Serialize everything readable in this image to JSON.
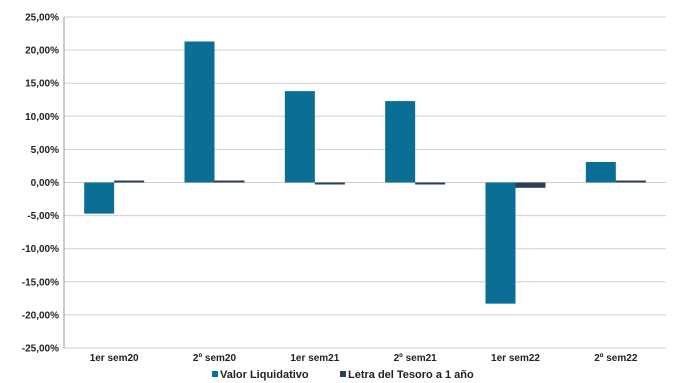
{
  "chart_data": {
    "type": "bar",
    "categories": [
      "1er sem20",
      "2º sem20",
      "1er sem21",
      "2º sem21",
      "1er sem22",
      "2º sem22"
    ],
    "series": [
      {
        "name": "Valor Liquidativo",
        "color": "#0b6f95",
        "values": [
          -4.7,
          21.3,
          13.8,
          12.3,
          -18.3,
          3.1
        ]
      },
      {
        "name": "Letra del Tesoro a 1 año",
        "color": "#2c3e55",
        "values": [
          0.1,
          0.1,
          -0.3,
          -0.2,
          -0.8,
          0.2
        ]
      }
    ],
    "ylim": [
      -25,
      25
    ],
    "yticks": [
      "25,00%",
      "20,00%",
      "15,00%",
      "10,00%",
      "5,00%",
      "0,00%",
      "-5,00%",
      "-10,00%",
      "-15,00%",
      "-20,00%",
      "-25,00%"
    ],
    "ytick_values": [
      25,
      20,
      15,
      10,
      5,
      0,
      -5,
      -10,
      -15,
      -20,
      -25
    ],
    "grid": true,
    "legend_position": "bottom"
  }
}
